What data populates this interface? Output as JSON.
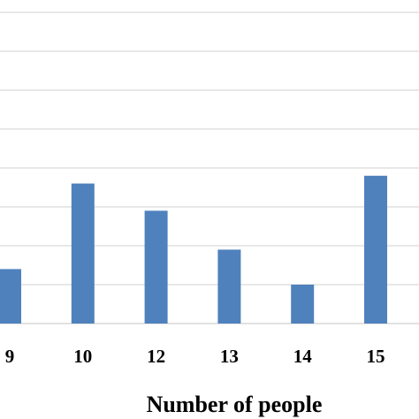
{
  "chart_data": {
    "type": "bar",
    "categories": [
      "9",
      "10",
      "12",
      "13",
      "14",
      "15"
    ],
    "values": [
      14,
      36,
      29,
      19,
      10,
      38
    ],
    "xlabel": "Number of people",
    "ylabel": "",
    "ylim": [
      0,
      80
    ],
    "grid": true,
    "colors": {
      "bar": "#4f81bd",
      "grid": "#d9d9d9"
    }
  }
}
